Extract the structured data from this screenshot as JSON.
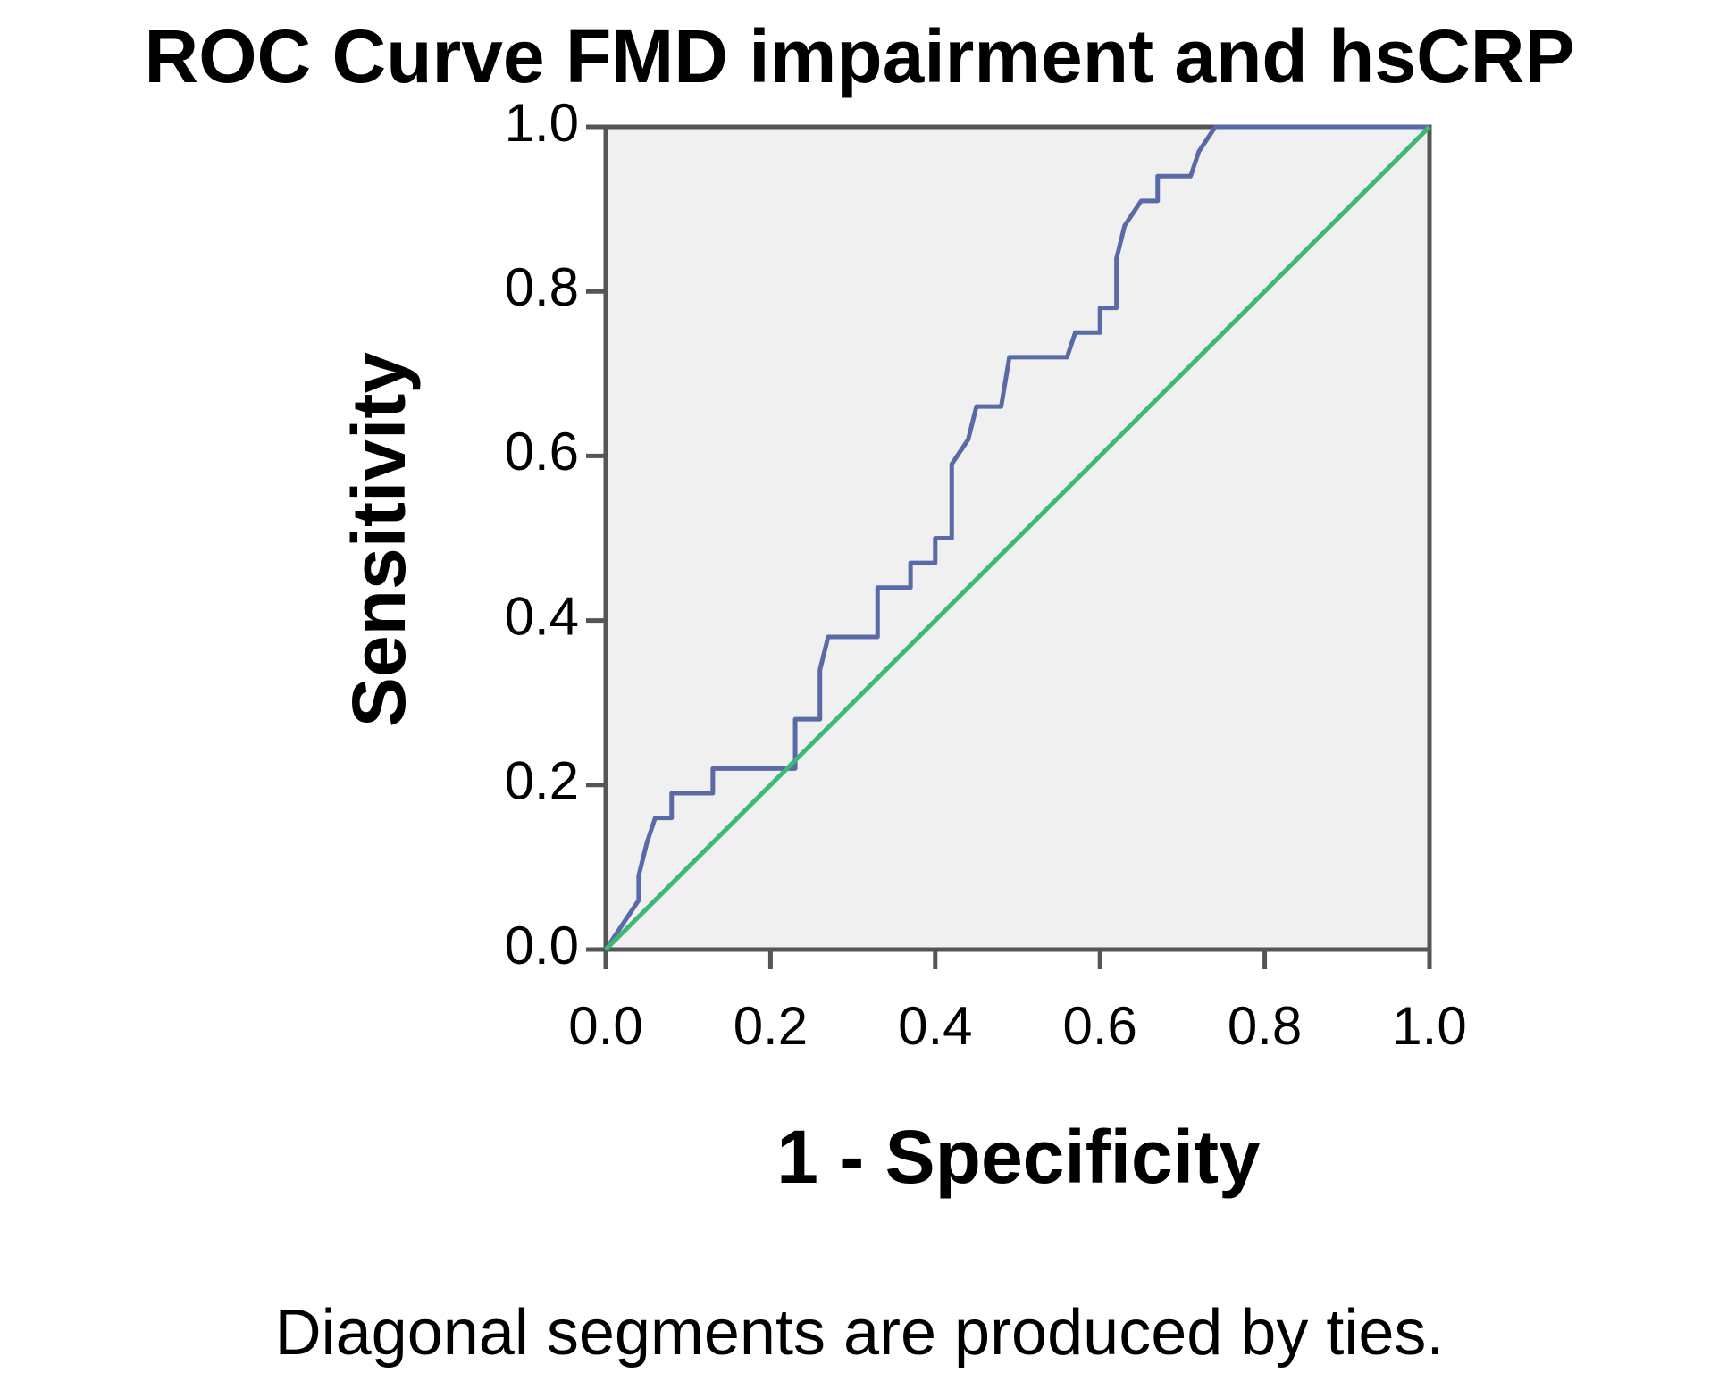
{
  "chart_data": {
    "type": "line",
    "title": "ROC Curve FMD impairment and hsCRP",
    "x_label": "1 - Specificity",
    "y_label": "Sensitivity",
    "footnote": "Diagonal segments are produced by ties.",
    "xlim": [
      0,
      1
    ],
    "ylim": [
      0,
      1
    ],
    "xticks": [
      {
        "value": 0,
        "label": "0.0"
      },
      0.2,
      0.4,
      0.6,
      0.8,
      {
        "value": 1,
        "label": "1.0"
      }
    ],
    "yticks": [
      {
        "value": 0,
        "label": "0.0"
      },
      0.2,
      0.4,
      0.6,
      0.8,
      {
        "value": 1,
        "label": "1.0"
      }
    ],
    "background": "#f0f0f0",
    "series": [
      {
        "color": "#5a6aa6",
        "x": [
          0,
          0.04,
          0.04,
          0.05,
          0.06,
          0.08,
          0.08,
          0.13,
          0.13,
          0.23,
          0.23,
          0.26,
          0.26,
          0.27,
          0.33,
          0.33,
          0.37,
          0.37,
          0.4,
          0.4,
          0.42,
          0.42,
          0.44,
          0.45,
          0.48,
          0.49,
          0.56,
          0.57,
          0.6,
          0.6,
          0.62,
          0.62,
          0.63,
          0.65,
          0.67,
          0.67,
          0.71,
          0.72,
          0.74,
          1.0
        ],
        "values": [
          0,
          0.06,
          0.09,
          0.13,
          0.16,
          0.16,
          0.19,
          0.19,
          0.22,
          0.22,
          0.28,
          0.28,
          0.34,
          0.38,
          0.38,
          0.44,
          0.44,
          0.47,
          0.47,
          0.5,
          0.5,
          0.59,
          0.62,
          0.66,
          0.66,
          0.72,
          0.72,
          0.75,
          0.75,
          0.78,
          0.78,
          0.84,
          0.88,
          0.91,
          0.91,
          0.94,
          0.94,
          0.97,
          1.0,
          1.0
        ]
      },
      {
        "color": "#3cb878",
        "x": [
          0,
          1
        ],
        "values": [
          0,
          1
        ]
      }
    ]
  }
}
